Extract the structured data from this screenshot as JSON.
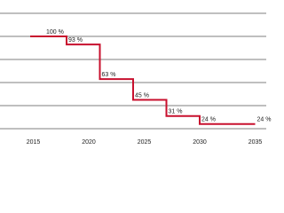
{
  "chart_data": {
    "type": "step",
    "x": [
      2016,
      2018,
      2021,
      2024,
      2027,
      2030,
      2035
    ],
    "values": [
      100,
      93,
      63,
      45,
      31,
      24,
      24
    ],
    "value_labels": [
      "100 %",
      "93 %",
      "63 %",
      "45 %",
      "31 %",
      "24 %",
      "24 %"
    ],
    "color": "#c8102e",
    "xlim": [
      2012,
      2036
    ],
    "xticks": [
      2015,
      2020,
      2025,
      2030,
      2035
    ],
    "ylim": [
      20,
      120
    ],
    "yticks": [
      20,
      40,
      60,
      80,
      100,
      120
    ],
    "grid": true
  }
}
